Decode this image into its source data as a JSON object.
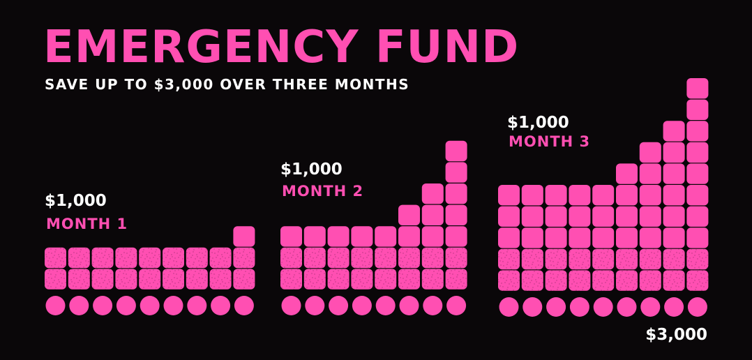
{
  "title": "EMERGENCY FUND",
  "subtitle": "SAVE UP TO $3,000 OVER THREE MONTHS",
  "colors": {
    "accent": "#ff4fb2",
    "background": "#0a0709",
    "text": "#ffffff"
  },
  "chart_data": {
    "type": "bar",
    "categories": [
      "MONTH 1",
      "MONTH 2",
      "MONTH 3"
    ],
    "amount_labels": [
      "$1,000",
      "$1,000",
      "$1,000"
    ],
    "values": [
      1000,
      1000,
      1000
    ],
    "total_label": "$3,000",
    "total": 3000,
    "column_heights": [
      [
        2,
        2,
        2,
        2,
        2,
        2,
        2,
        2,
        3
      ],
      [
        3,
        3,
        3,
        3,
        3,
        4,
        5,
        7
      ],
      [
        5,
        5,
        5,
        5,
        5,
        6,
        7,
        8,
        10
      ]
    ]
  }
}
